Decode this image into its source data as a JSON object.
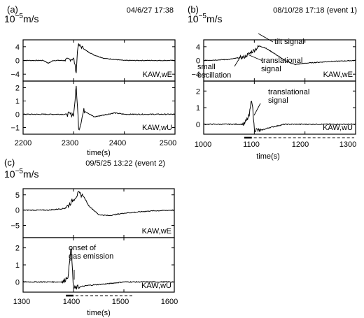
{
  "chart_data": [
    {
      "type": "line",
      "panel_label": "(a)",
      "unit_label": "10^-5 m/s",
      "unit_base": "10",
      "unit_exp": "−5",
      "unit_tail": "m/s",
      "datetime": "04/6/27 17:38",
      "xlabel": "time(s)",
      "xlim": [
        2200,
        2500
      ],
      "xticks": [
        2200,
        2300,
        2400,
        2500
      ],
      "subplots": [
        {
          "series_name": "KAW,wE",
          "ylim": [
            -6,
            6
          ],
          "yticks": [
            4,
            0,
            -4
          ],
          "series": [
            {
              "x": [
                2200,
                2240,
                2250,
                2260,
                2280,
                2300,
                2305,
                2308,
                2315,
                2325,
                2340,
                2360,
                2400,
                2450,
                2500
              ],
              "y": [
                0,
                0,
                -0.8,
                0,
                0,
                0.5,
                -3.5,
                4.5,
                4.0,
                2.8,
                1.6,
                0.6,
                0,
                0,
                0
              ]
            }
          ]
        },
        {
          "series_name": "KAW,wU",
          "ylim": [
            -1.5,
            2.5
          ],
          "yticks": [
            2,
            1,
            0,
            -1
          ],
          "series": [
            {
              "x": [
                2200,
                2250,
                2300,
                2305,
                2310,
                2320,
                2340,
                2380,
                2400,
                2500
              ],
              "y": [
                0,
                0,
                0,
                2.1,
                -1.2,
                0.3,
                -0.2,
                0.1,
                0,
                0
              ]
            }
          ]
        }
      ]
    },
    {
      "type": "line",
      "panel_label": "(b)",
      "unit_label": "10^-5 m/s",
      "unit_base": "10",
      "unit_exp": "−5",
      "unit_tail": "m/s",
      "datetime": "08/10/28 17:18 (event 1)",
      "xlabel": "time(s)",
      "xlim": [
        1000,
        1300
      ],
      "xticks": [
        1000,
        1100,
        1200,
        1300
      ],
      "subplots": [
        {
          "series_name": "KAW,wE",
          "ylim": [
            -6,
            6
          ],
          "yticks": [
            4,
            0,
            -4
          ],
          "annotations": [
            "tilt signal",
            "translational signal",
            "small oscillation"
          ],
          "series": [
            {
              "x": [
                1000,
                1050,
                1070,
                1080,
                1090,
                1100,
                1110,
                1120,
                1140,
                1160,
                1180,
                1200,
                1250,
                1300
              ],
              "y": [
                0,
                0.3,
                0.8,
                1.0,
                2.0,
                3.0,
                4.2,
                3.8,
                2.0,
                0,
                -1.2,
                -0.8,
                -0.3,
                0
              ]
            }
          ]
        },
        {
          "series_name": "KAW,wU",
          "ylim": [
            -0.6,
            2.6
          ],
          "yticks": [
            2,
            1,
            0
          ],
          "annotations": [
            "translational signal"
          ],
          "series": [
            {
              "x": [
                1000,
                1080,
                1090,
                1095,
                1100,
                1110,
                1130,
                1160,
                1200,
                1300
              ],
              "y": [
                0,
                0,
                0.5,
                1.6,
                -0.3,
                -0.4,
                -0.2,
                0,
                0,
                0
              ]
            }
          ]
        }
      ]
    },
    {
      "type": "line",
      "panel_label": "(c)",
      "unit_label": "10^-5 m/s",
      "unit_base": "10",
      "unit_exp": "−5",
      "unit_tail": "m/s",
      "datetime": "09/5/25 13:22 (event 2)",
      "xlabel": "time(s)",
      "xlim": [
        1300,
        1600
      ],
      "xticks": [
        1300,
        1400,
        1500,
        1600
      ],
      "subplots": [
        {
          "series_name": "KAW,wE",
          "ylim": [
            -9,
            7
          ],
          "yticks": [
            5,
            0,
            -5
          ],
          "series": [
            {
              "x": [
                1300,
                1350,
                1380,
                1390,
                1400,
                1410,
                1420,
                1430,
                1450,
                1470,
                1500,
                1550,
                1600
              ],
              "y": [
                0,
                0,
                0.5,
                1.5,
                3.5,
                5.5,
                4.5,
                1.5,
                -1.5,
                -1.8,
                -1.0,
                -0.3,
                0
              ]
            }
          ]
        },
        {
          "series_name": "KAW,wU",
          "ylim": [
            -0.6,
            2.6
          ],
          "yticks": [
            2,
            1,
            0
          ],
          "annotations": [
            "onset of gas emission"
          ],
          "series": [
            {
              "x": [
                1300,
                1380,
                1390,
                1395,
                1400,
                1410,
                1430,
                1470,
                1500,
                1600
              ],
              "y": [
                0,
                0,
                0.4,
                2.2,
                -0.4,
                -0.3,
                -0.2,
                -0.1,
                0,
                0
              ]
            }
          ]
        }
      ]
    }
  ]
}
